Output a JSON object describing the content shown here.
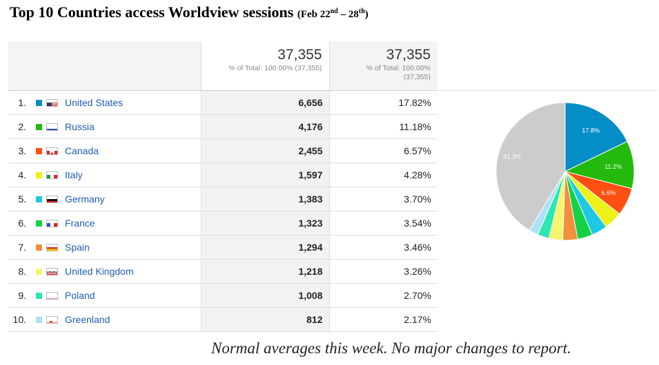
{
  "title": {
    "main": "Top 10 Countries access Worldview sessions",
    "paren_open": "(Feb 22",
    "sup1": "nd",
    "mid": " – 28",
    "sup2": "th",
    "paren_close": ")"
  },
  "totals": {
    "sessions_value": "37,355",
    "sessions_sub": "% of Total: 100.00% (37,355)",
    "pct_value": "37,355",
    "pct_sub_1": "% of Total: 100.00%",
    "pct_sub_2": "(37,355)"
  },
  "rows": [
    {
      "rank": "1.",
      "country": "United States",
      "sessions": "6,656",
      "pct": "17.82%",
      "color": "#058dc7",
      "flag": "us"
    },
    {
      "rank": "2.",
      "country": "Russia",
      "sessions": "4,176",
      "pct": "11.18%",
      "color": "#24b90d",
      "flag": "ru"
    },
    {
      "rank": "3.",
      "country": "Canada",
      "sessions": "2,455",
      "pct": "6.57%",
      "color": "#ff4f12",
      "flag": "ca"
    },
    {
      "rank": "4.",
      "country": "Italy",
      "sessions": "1,597",
      "pct": "4.28%",
      "color": "#eef01a",
      "flag": "it"
    },
    {
      "rank": "5.",
      "country": "Germany",
      "sessions": "1,383",
      "pct": "3.70%",
      "color": "#1ec8e3",
      "flag": "de"
    },
    {
      "rank": "6.",
      "country": "France",
      "sessions": "1,323",
      "pct": "3.54%",
      "color": "#15d146",
      "flag": "fr"
    },
    {
      "rank": "7.",
      "country": "Spain",
      "sessions": "1,294",
      "pct": "3.46%",
      "color": "#f28e3c",
      "flag": "es"
    },
    {
      "rank": "8.",
      "country": "United Kingdom",
      "sessions": "1,218",
      "pct": "3.26%",
      "color": "#f5f56e",
      "flag": "gb"
    },
    {
      "rank": "9.",
      "country": "Poland",
      "sessions": "1,008",
      "pct": "2.70%",
      "color": "#2ee6b0",
      "flag": "pl"
    },
    {
      "rank": "10.",
      "country": "Greenland",
      "sessions": "812",
      "pct": "2.17%",
      "color": "#aee1f5",
      "flag": "gl"
    }
  ],
  "chart_data": {
    "type": "pie",
    "slices": [
      {
        "label": "United States",
        "value": 17.82,
        "color": "#058dc7",
        "data_label": "17.8%"
      },
      {
        "label": "Russia",
        "value": 11.18,
        "color": "#24b90d",
        "data_label": "11.2%"
      },
      {
        "label": "Canada",
        "value": 6.57,
        "color": "#ff4f12",
        "data_label": "6.6%"
      },
      {
        "label": "Italy",
        "value": 4.28,
        "color": "#eef01a",
        "data_label": ""
      },
      {
        "label": "Germany",
        "value": 3.7,
        "color": "#1ec8e3",
        "data_label": ""
      },
      {
        "label": "France",
        "value": 3.54,
        "color": "#15d146",
        "data_label": ""
      },
      {
        "label": "Spain",
        "value": 3.46,
        "color": "#f28e3c",
        "data_label": ""
      },
      {
        "label": "United Kingdom",
        "value": 3.26,
        "color": "#f5f56e",
        "data_label": ""
      },
      {
        "label": "Poland",
        "value": 2.7,
        "color": "#2ee6b0",
        "data_label": ""
      },
      {
        "label": "Greenland",
        "value": 2.17,
        "color": "#aee1f5",
        "data_label": ""
      },
      {
        "label": "Other",
        "value": 41.32,
        "color": "#cccccc",
        "data_label": "41.3%"
      }
    ]
  },
  "note": "Normal averages this week. No major changes to report."
}
